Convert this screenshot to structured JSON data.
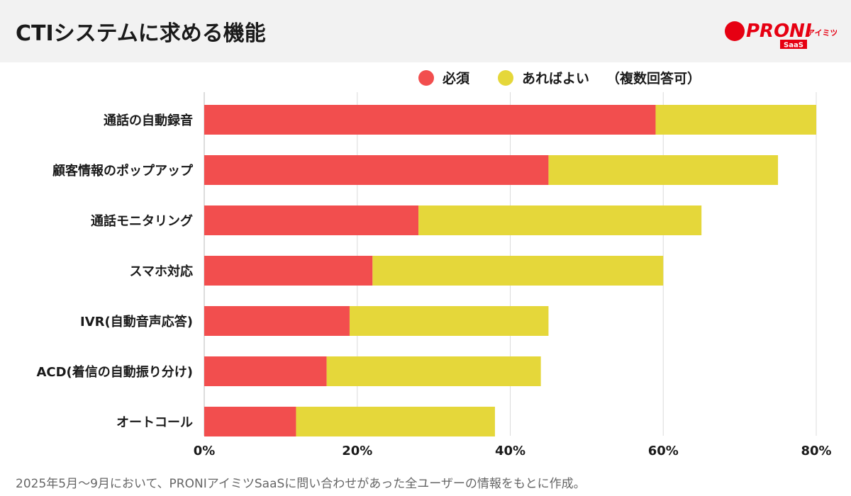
{
  "title": "CTIシステムに求める機能",
  "logo": {
    "text": "PRONI",
    "sub": "アイミツ",
    "badge": "SaaS"
  },
  "legend": {
    "note": "（複数回答可）"
  },
  "footnote": "2025年5月〜9月において、PRONIアイミツSaaSに問い合わせがあった全ユーザーの情報をもとに作成。",
  "chart_data": {
    "type": "bar",
    "orientation": "horizontal",
    "stacked": true,
    "categories": [
      "通話の自動録音",
      "顧客情報のポップアップ",
      "通話モニタリング",
      "スマホ対応",
      "IVR(自動音声応答)",
      "ACD(着信の自動振り分け)",
      "オートコール"
    ],
    "series": [
      {
        "name": "必須",
        "color": "#f24e4e",
        "values": [
          59,
          45,
          28,
          22,
          19,
          16,
          12
        ]
      },
      {
        "name": "あればよい",
        "color": "#e5d73a",
        "values": [
          21,
          30,
          37,
          38,
          26,
          28,
          26
        ]
      }
    ],
    "xlim": [
      0,
      80
    ],
    "xticks": [
      "0%",
      "20%",
      "40%",
      "60%",
      "80%"
    ],
    "grid": true,
    "legend_position": "top"
  }
}
